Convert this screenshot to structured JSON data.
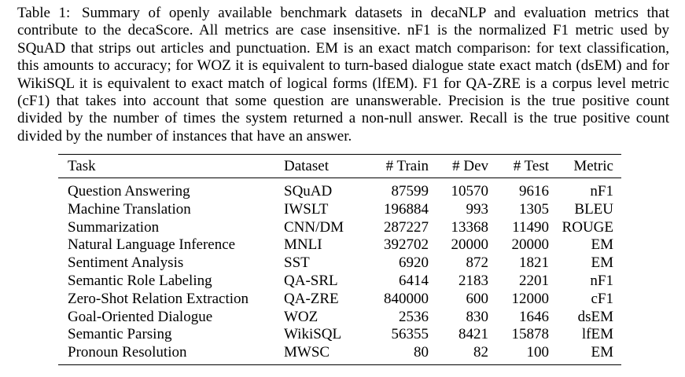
{
  "caption": {
    "label": "Table 1:",
    "text": "Summary of openly available benchmark datasets in decaNLP and evaluation metrics that contribute to the decaScore. All metrics are case insensitive. nF1 is the normalized F1 metric used by SQuAD that strips out articles and punctuation. EM is an exact match comparison: for text classification, this amounts to accuracy; for WOZ it is equivalent to turn-based dialogue state exact match (dsEM) and for WikiSQL it is equivalent to exact match of logical forms (lfEM). F1 for QA-ZRE is a corpus level metric (cF1) that takes into account that some question are unanswerable. Precision is the true positive count divided by the number of times the system returned a non-null answer. Recall is the true positive count divided by the number of instances that have an answer."
  },
  "table": {
    "headers": [
      "Task",
      "Dataset",
      "# Train",
      "# Dev",
      "# Test",
      "Metric"
    ],
    "rows": [
      [
        "Question Answering",
        "SQuAD",
        "87599",
        "10570",
        "9616",
        "nF1"
      ],
      [
        "Machine Translation",
        "IWSLT",
        "196884",
        "993",
        "1305",
        "BLEU"
      ],
      [
        "Summarization",
        "CNN/DM",
        "287227",
        "13368",
        "11490",
        "ROUGE"
      ],
      [
        "Natural Language Inference",
        "MNLI",
        "392702",
        "20000",
        "20000",
        "EM"
      ],
      [
        "Sentiment Analysis",
        "SST",
        "6920",
        "872",
        "1821",
        "EM"
      ],
      [
        "Semantic Role Labeling",
        "QA-SRL",
        "6414",
        "2183",
        "2201",
        "nF1"
      ],
      [
        "Zero-Shot Relation Extraction",
        "QA-ZRE",
        "840000",
        "600",
        "12000",
        "cF1"
      ],
      [
        "Goal-Oriented Dialogue",
        "WOZ",
        "2536",
        "830",
        "1646",
        "dsEM"
      ],
      [
        "Semantic Parsing",
        "WikiSQL",
        "56355",
        "8421",
        "15878",
        "lfEM"
      ],
      [
        "Pronoun Resolution",
        "MWSC",
        "80",
        "82",
        "100",
        "EM"
      ]
    ]
  }
}
